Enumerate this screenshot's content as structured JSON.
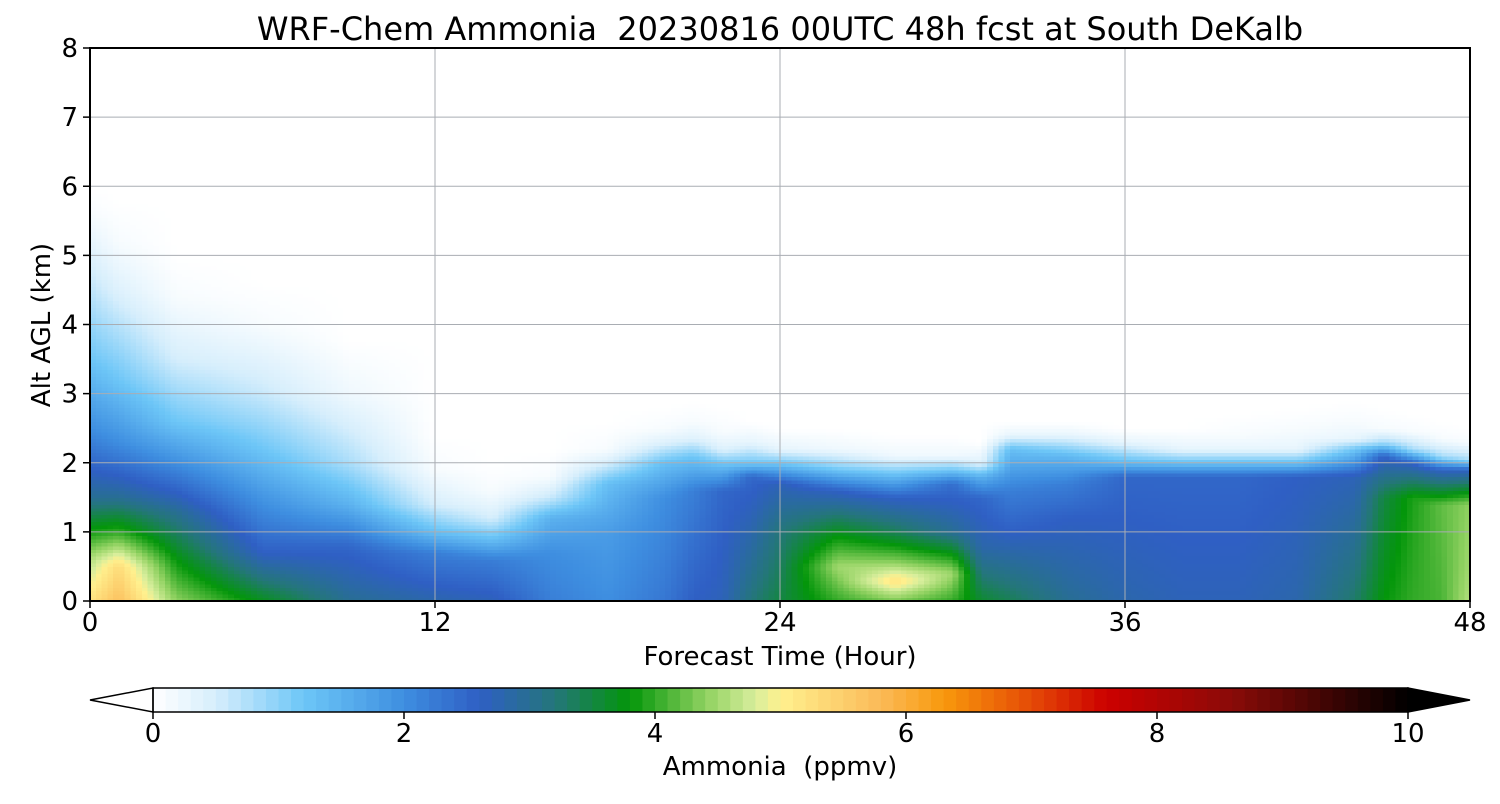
{
  "chart_data": {
    "type": "heatmap",
    "title": "WRF-Chem Ammonia  20230816 00UTC 48h fcst at South DeKalb",
    "xlabel": "Forecast Time (Hour)",
    "ylabel": "Alt AGL (km)",
    "xlim": [
      0,
      48
    ],
    "ylim": [
      0,
      8
    ],
    "x_ticks": [
      "0",
      "12",
      "24",
      "36",
      "48"
    ],
    "y_ticks": [
      "0",
      "1",
      "2",
      "3",
      "4",
      "5",
      "6",
      "7",
      "8"
    ],
    "grid": true,
    "colorbar": {
      "label": "Ammonia  (ppmv)",
      "range": [
        0,
        10
      ],
      "ticks": [
        "0",
        "2",
        "4",
        "6",
        "8",
        "10"
      ],
      "extend": "both",
      "stops": [
        {
          "v": 0.0,
          "color": "#ffffff"
        },
        {
          "v": 0.5,
          "color": "#d6eefc"
        },
        {
          "v": 1.2,
          "color": "#6dc6f7"
        },
        {
          "v": 2.0,
          "color": "#3e8ee0"
        },
        {
          "v": 2.6,
          "color": "#2f5fc4"
        },
        {
          "v": 3.2,
          "color": "#24767a"
        },
        {
          "v": 3.8,
          "color": "#03960a"
        },
        {
          "v": 4.4,
          "color": "#8fd160"
        },
        {
          "v": 4.8,
          "color": "#d8ee9c"
        },
        {
          "v": 5.0,
          "color": "#fff08e"
        },
        {
          "v": 5.8,
          "color": "#fbba58"
        },
        {
          "v": 6.3,
          "color": "#f8990c"
        },
        {
          "v": 7.0,
          "color": "#e54a06"
        },
        {
          "v": 7.6,
          "color": "#cc0000"
        },
        {
          "v": 8.6,
          "color": "#8a0b08"
        },
        {
          "v": 10.0,
          "color": "#000000"
        }
      ]
    },
    "field": {
      "hours": [
        0,
        1,
        3,
        6,
        9,
        12,
        14,
        16,
        18,
        20,
        21,
        22,
        23,
        24,
        26,
        28,
        30,
        31,
        32,
        34,
        36,
        38,
        40,
        42,
        44,
        45,
        46,
        47,
        48
      ],
      "profiles": [
        [
          [
            0,
            5.2
          ],
          [
            0.6,
            4.6
          ],
          [
            1.5,
            3.0
          ],
          [
            2.5,
            2.0
          ],
          [
            3.5,
            1.2
          ],
          [
            5.0,
            0.4
          ],
          [
            5.6,
            0.1
          ],
          [
            6.0,
            0
          ]
        ],
        [
          [
            0,
            5.7
          ],
          [
            0.5,
            5.3
          ],
          [
            1.0,
            4.0
          ],
          [
            1.5,
            3.0
          ],
          [
            2.3,
            2.0
          ],
          [
            3.2,
            1.2
          ],
          [
            4.5,
            0.4
          ],
          [
            5.2,
            0.1
          ],
          [
            5.8,
            0
          ]
        ],
        [
          [
            0,
            4.4
          ],
          [
            0.6,
            3.8
          ],
          [
            1.3,
            3.0
          ],
          [
            2.0,
            2.0
          ],
          [
            2.6,
            1.2
          ],
          [
            3.5,
            0.5
          ],
          [
            4.4,
            0.1
          ],
          [
            5.0,
            0
          ]
        ],
        [
          [
            0,
            3.7
          ],
          [
            0.7,
            2.6
          ],
          [
            1.5,
            1.9
          ],
          [
            2.2,
            1.2
          ],
          [
            3.0,
            0.6
          ],
          [
            4.0,
            0.1
          ],
          [
            4.6,
            0
          ]
        ],
        [
          [
            0,
            3.0
          ],
          [
            0.8,
            2.5
          ],
          [
            1.4,
            1.5
          ],
          [
            2.0,
            0.8
          ],
          [
            3.0,
            0.2
          ],
          [
            3.8,
            0
          ]
        ],
        [
          [
            0,
            2.8
          ],
          [
            0.7,
            2.2
          ],
          [
            1.0,
            1.3
          ],
          [
            1.4,
            0.5
          ],
          [
            1.9,
            0.1
          ],
          [
            2.4,
            0
          ]
        ],
        [
          [
            0,
            2.7
          ],
          [
            0.6,
            2.2
          ],
          [
            0.9,
            1.3
          ],
          [
            1.2,
            0.5
          ],
          [
            1.6,
            0.1
          ],
          [
            2.0,
            0
          ]
        ],
        [
          [
            0,
            2.2
          ],
          [
            0.7,
            2.0
          ],
          [
            1.2,
            1.5
          ],
          [
            1.5,
            0.6
          ],
          [
            1.8,
            0.1
          ],
          [
            2.2,
            0
          ]
        ],
        [
          [
            0,
            2.0
          ],
          [
            1.0,
            1.8
          ],
          [
            1.7,
            1.3
          ],
          [
            2.0,
            0.5
          ],
          [
            2.2,
            0.1
          ],
          [
            2.6,
            0
          ]
        ],
        [
          [
            0,
            2.3
          ],
          [
            1.5,
            2.0
          ],
          [
            2.0,
            1.3
          ],
          [
            2.3,
            0.4
          ],
          [
            2.5,
            0.1
          ],
          [
            2.8,
            0
          ]
        ],
        [
          [
            0,
            2.6
          ],
          [
            1.6,
            2.2
          ],
          [
            2.1,
            1.2
          ],
          [
            2.35,
            0.4
          ],
          [
            2.6,
            0.1
          ],
          [
            2.9,
            0
          ]
        ],
        [
          [
            0,
            2.7
          ],
          [
            1.6,
            2.5
          ],
          [
            2.0,
            1.2
          ],
          [
            2.2,
            0.4
          ],
          [
            2.45,
            0.1
          ],
          [
            2.8,
            0
          ]
        ],
        [
          [
            0,
            3.2
          ],
          [
            1.0,
            2.8
          ],
          [
            1.8,
            2.5
          ],
          [
            2.0,
            1.2
          ],
          [
            2.3,
            0.3
          ],
          [
            2.6,
            0
          ]
        ],
        [
          [
            0,
            3.5
          ],
          [
            1.0,
            3.2
          ],
          [
            1.7,
            2.7
          ],
          [
            2.0,
            1.2
          ],
          [
            2.2,
            0.3
          ],
          [
            2.5,
            0
          ]
        ],
        [
          [
            0,
            4.0
          ],
          [
            0.5,
            4.5
          ],
          [
            1.0,
            3.7
          ],
          [
            1.6,
            2.6
          ],
          [
            1.95,
            1.0
          ],
          [
            2.2,
            0.2
          ],
          [
            2.5,
            0
          ]
        ],
        [
          [
            0,
            4.3
          ],
          [
            0.3,
            5.2
          ],
          [
            0.6,
            4.3
          ],
          [
            1.0,
            3.4
          ],
          [
            1.5,
            2.6
          ],
          [
            1.9,
            1.0
          ],
          [
            2.1,
            0.2
          ],
          [
            2.4,
            0
          ]
        ],
        [
          [
            0,
            4.0
          ],
          [
            0.4,
            4.5
          ],
          [
            1.0,
            3.0
          ],
          [
            1.7,
            2.4
          ],
          [
            1.9,
            1.2
          ],
          [
            2.1,
            0.2
          ],
          [
            2.4,
            0
          ]
        ],
        [
          [
            0,
            3.6
          ],
          [
            0.8,
            2.8
          ],
          [
            1.5,
            2.5
          ],
          [
            1.8,
            1.5
          ],
          [
            2.0,
            0.4
          ],
          [
            2.3,
            0
          ]
        ],
        [
          [
            0,
            3.4
          ],
          [
            1.0,
            2.6
          ],
          [
            1.6,
            2.2
          ],
          [
            2.2,
            1.3
          ],
          [
            2.4,
            0.3
          ],
          [
            2.6,
            0
          ]
        ],
        [
          [
            0,
            3.0
          ],
          [
            1.2,
            2.6
          ],
          [
            1.7,
            2.2
          ],
          [
            2.1,
            1.4
          ],
          [
            2.4,
            0.3
          ],
          [
            2.6,
            0
          ]
        ],
        [
          [
            0,
            2.8
          ],
          [
            1.8,
            2.5
          ],
          [
            2.0,
            1.4
          ],
          [
            2.3,
            0.3
          ],
          [
            2.5,
            0
          ]
        ],
        [
          [
            0,
            2.7
          ],
          [
            1.8,
            2.5
          ],
          [
            2.0,
            1.3
          ],
          [
            2.2,
            0.3
          ],
          [
            2.5,
            0
          ]
        ],
        [
          [
            0,
            2.7
          ],
          [
            1.8,
            2.5
          ],
          [
            2.0,
            1.3
          ],
          [
            2.2,
            0.3
          ],
          [
            2.4,
            0.1
          ],
          [
            2.7,
            0
          ]
        ],
        [
          [
            0,
            2.8
          ],
          [
            1.8,
            2.6
          ],
          [
            2.0,
            1.3
          ],
          [
            2.2,
            0.3
          ],
          [
            2.5,
            0.1
          ],
          [
            2.8,
            0
          ]
        ],
        [
          [
            0,
            3.3
          ],
          [
            1.8,
            2.7
          ],
          [
            2.2,
            1.2
          ],
          [
            2.35,
            0.3
          ],
          [
            2.6,
            0.1
          ],
          [
            2.9,
            0
          ]
        ],
        [
          [
            0,
            3.8
          ],
          [
            1.5,
            3.5
          ],
          [
            2.1,
            2.6
          ],
          [
            2.3,
            0.8
          ],
          [
            2.5,
            0.1
          ],
          [
            2.8,
            0
          ]
        ],
        [
          [
            0,
            4.0
          ],
          [
            1.5,
            3.9
          ],
          [
            2.0,
            2.6
          ],
          [
            2.2,
            0.8
          ],
          [
            2.45,
            0.1
          ],
          [
            2.7,
            0
          ]
        ],
        [
          [
            0,
            4.1
          ],
          [
            1.4,
            4.2
          ],
          [
            1.9,
            2.6
          ],
          [
            2.1,
            0.8
          ],
          [
            2.35,
            0.1
          ],
          [
            2.6,
            0
          ]
        ],
        [
          [
            0,
            4.6
          ],
          [
            0.5,
            4.5
          ],
          [
            1.4,
            4.4
          ],
          [
            1.9,
            2.6
          ],
          [
            2.05,
            0.8
          ],
          [
            2.3,
            0.1
          ],
          [
            2.5,
            0
          ]
        ]
      ]
    }
  }
}
